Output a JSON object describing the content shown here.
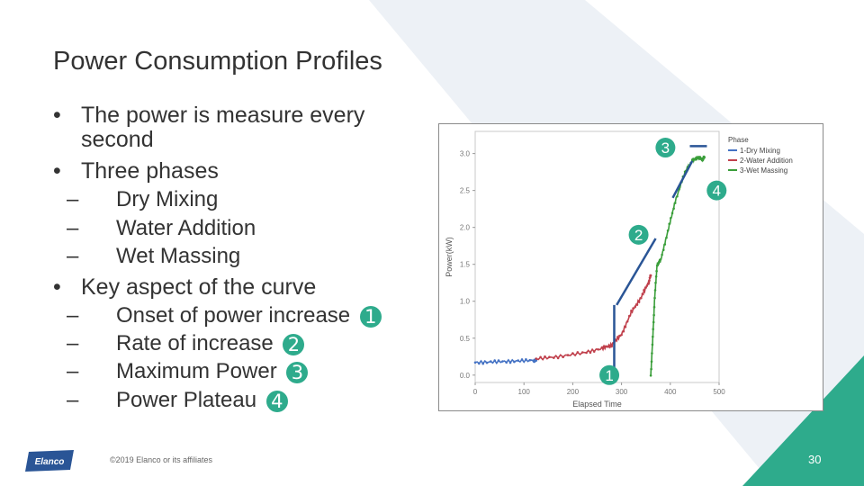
{
  "slide": {
    "title": "Power Consumption Profiles",
    "bullets": {
      "b1": "The power is measure every",
      "b1_cont": "second",
      "b2": "Three phases",
      "sub1": "Dry Mixing",
      "sub2": "Water Addition",
      "sub3": "Wet Massing",
      "b3": "Key aspect of the curve",
      "k1": "Onset of power increase",
      "k2": "Rate of increase",
      "k3": "Maximum Power",
      "k4": "Power Plateau"
    },
    "badges": {
      "one": "1",
      "two": "2",
      "three": "3",
      "four": "4"
    },
    "footer": "©2019 Elanco or its affiliates",
    "page_number": "30",
    "logo_text": "Elanco",
    "colors": {
      "accent_teal": "#2eab8c",
      "annotation_blue": "#2a5596",
      "bg_light": "#edf1f6"
    }
  },
  "chart_data": {
    "type": "line",
    "xlabel": "Elapsed Time",
    "ylabel": "Power(kW)",
    "xlim": [
      0,
      500
    ],
    "ylim": [
      -0.1,
      3.3
    ],
    "x_ticks": [
      "0",
      "100",
      "200",
      "300",
      "400",
      "500"
    ],
    "y_ticks": [
      "0.0",
      "0.5",
      "1.0",
      "1.5",
      "2.0",
      "2.5",
      "3.0"
    ],
    "legend_title": "Phase",
    "legend_position": "top-right",
    "series": [
      {
        "name": "1-Dry Mixing",
        "color": "#4472c4",
        "x": [
          0,
          40,
          80,
          120,
          125
        ],
        "y": [
          0.17,
          0.18,
          0.19,
          0.2,
          0.2
        ]
      },
      {
        "name": "2-Water Addition",
        "color": "#c0404c",
        "x": [
          125,
          170,
          220,
          260,
          280,
          300,
          320,
          340,
          355,
          360
        ],
        "y": [
          0.22,
          0.25,
          0.3,
          0.36,
          0.41,
          0.55,
          0.85,
          1.05,
          1.25,
          1.35
        ]
      },
      {
        "name": "3-Wet Massing",
        "color": "#3a9e3a",
        "x": [
          360,
          364,
          368,
          373,
          380,
          395,
          410,
          430,
          445,
          455,
          465,
          470
        ],
        "y": [
          0.0,
          0.5,
          1.05,
          1.5,
          1.55,
          1.95,
          2.35,
          2.75,
          2.9,
          2.95,
          2.92,
          2.95
        ]
      }
    ],
    "annotations": [
      "1",
      "2",
      "3",
      "4"
    ]
  }
}
